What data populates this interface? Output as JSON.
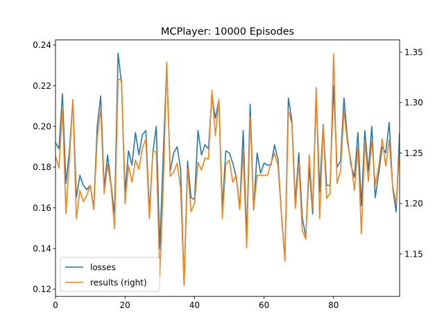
{
  "chart_data": {
    "type": "line",
    "title": "MCPlayer: 10000 Episodes",
    "xlabel": "",
    "ylabel": "",
    "y2label": "",
    "xlim": [
      0,
      99
    ],
    "ylim": [
      0.1165,
      0.2425
    ],
    "y2lim": [
      1.108,
      1.362
    ],
    "xticks": [
      0,
      20,
      40,
      60,
      80
    ],
    "yticks": [
      0.12,
      0.14,
      0.16,
      0.18,
      0.2,
      0.22,
      0.24
    ],
    "yticklabels": [
      "0.12",
      "0.14",
      "0.16",
      "0.18",
      "0.20",
      "0.22",
      "0.24"
    ],
    "y2ticks": [
      1.15,
      1.2,
      1.25,
      1.3,
      1.35
    ],
    "y2ticklabels": [
      "1.15",
      "1.20",
      "1.25",
      "1.30",
      "1.35"
    ],
    "grid": false,
    "legend": "lower-left",
    "series": [
      {
        "name": "losses",
        "axis": "left",
        "color": "#1f77b4",
        "values": [
          0.192,
          0.189,
          0.216,
          0.172,
          0.188,
          0.213,
          0.165,
          0.176,
          0.171,
          0.169,
          0.171,
          0.16,
          0.2,
          0.215,
          0.17,
          0.186,
          0.171,
          0.157,
          0.236,
          0.221,
          0.168,
          0.188,
          0.181,
          0.197,
          0.186,
          0.196,
          0.198,
          0.158,
          0.187,
          0.2,
          0.14,
          0.186,
          0.23,
          0.178,
          0.187,
          0.19,
          0.179,
          0.122,
          0.183,
          0.165,
          0.164,
          0.198,
          0.186,
          0.191,
          0.189,
          0.215,
          0.204,
          0.213,
          0.16,
          0.188,
          0.187,
          0.182,
          0.175,
          0.16,
          0.198,
          0.145,
          0.211,
          0.159,
          0.187,
          0.177,
          0.182,
          0.181,
          0.181,
          0.191,
          0.184,
          0.157,
          0.135,
          0.214,
          0.203,
          0.163,
          0.187,
          0.155,
          0.146,
          0.18,
          0.157,
          0.216,
          0.168,
          0.201,
          0.171,
          0.171,
          0.22,
          0.18,
          0.183,
          0.214,
          0.194,
          0.181,
          0.175,
          0.197,
          0.161,
          0.198,
          0.178,
          0.2,
          0.165,
          0.177,
          0.19,
          0.187,
          0.202,
          0.17,
          0.158,
          0.197
        ]
      },
      {
        "name": "results (right)",
        "axis": "right",
        "color": "#ff7f0e",
        "values": [
          1.247,
          1.235,
          1.297,
          1.19,
          1.244,
          1.303,
          1.185,
          1.213,
          1.202,
          1.208,
          1.218,
          1.194,
          1.265,
          1.294,
          1.21,
          1.239,
          1.216,
          1.175,
          1.323,
          1.323,
          1.2,
          1.238,
          1.221,
          1.243,
          1.234,
          1.255,
          1.264,
          1.185,
          1.252,
          1.251,
          1.128,
          1.216,
          1.34,
          1.227,
          1.231,
          1.24,
          1.215,
          1.12,
          1.235,
          1.192,
          1.2,
          1.241,
          1.233,
          1.245,
          1.244,
          1.312,
          1.267,
          1.303,
          1.185,
          1.239,
          1.243,
          1.221,
          1.228,
          1.194,
          1.251,
          1.156,
          1.286,
          1.195,
          1.228,
          1.228,
          1.228,
          1.228,
          1.24,
          1.25,
          1.238,
          1.19,
          1.143,
          1.292,
          1.279,
          1.195,
          1.241,
          1.173,
          1.165,
          1.248,
          1.195,
          1.315,
          1.185,
          1.277,
          1.205,
          1.21,
          1.348,
          1.22,
          1.232,
          1.292,
          1.26,
          1.242,
          1.213,
          1.256,
          1.17,
          1.262,
          1.222,
          1.262,
          1.218,
          1.237,
          1.264,
          1.237,
          1.263,
          1.217,
          1.2,
          1.253
        ]
      }
    ]
  }
}
